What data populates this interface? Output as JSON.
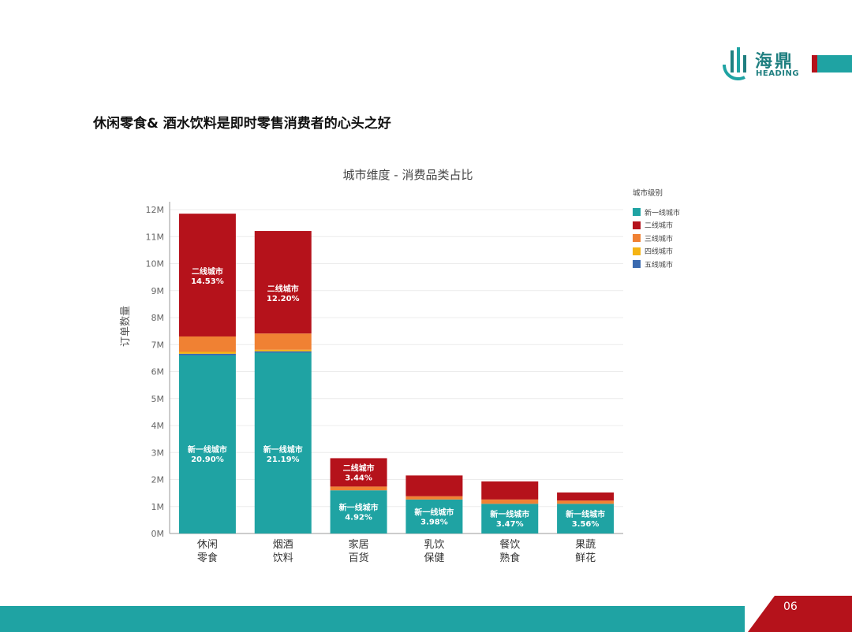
{
  "header": {
    "logo_cn": "海鼎",
    "logo_en": "HEADING",
    "headline": "休闲零食& 酒水饮料是即时零售消费者的心头之好"
  },
  "footer": {
    "page_number": "06"
  },
  "colors": {
    "teal": "#1fa3a3",
    "red": "#b5121b",
    "orange": "#f08133",
    "yellow": "#f5b414",
    "blue": "#3a6ab0"
  },
  "chart_data": {
    "type": "bar",
    "stacked": true,
    "title": "城市维度 - 消费品类占比",
    "ylabel": "订单数量",
    "xlabel": "",
    "ylim": [
      0,
      12
    ],
    "y_unit_suffix": "M",
    "yticks": [
      "0M",
      "1M",
      "2M",
      "3M",
      "4M",
      "5M",
      "6M",
      "7M",
      "8M",
      "9M",
      "10M",
      "11M",
      "12M"
    ],
    "categories": [
      [
        "休闲",
        "零食"
      ],
      [
        "烟酒",
        "饮料"
      ],
      [
        "家居",
        "百货"
      ],
      [
        "乳饮",
        "保健"
      ],
      [
        "餐饮",
        "熟食"
      ],
      [
        "果蔬",
        "鲜花"
      ]
    ],
    "legend_title": "城市级别",
    "legend_position": "top-right",
    "grid": true,
    "series": [
      {
        "name": "新一线城市",
        "color": "#1fa3a3",
        "values": [
          6.6,
          6.7,
          1.6,
          1.26,
          1.1,
          1.1
        ]
      },
      {
        "name": "五线城市",
        "color": "#3a6ab0",
        "values": [
          0.06,
          0.05,
          0.0,
          0.0,
          0.0,
          0.0
        ]
      },
      {
        "name": "四线城市",
        "color": "#f5b414",
        "values": [
          0.07,
          0.06,
          0.0,
          0.0,
          0.0,
          0.0
        ]
      },
      {
        "name": "三线城市",
        "color": "#f08133",
        "values": [
          0.57,
          0.6,
          0.14,
          0.12,
          0.16,
          0.12
        ]
      },
      {
        "name": "二线城市",
        "color": "#b5121b",
        "values": [
          4.55,
          3.8,
          1.05,
          0.77,
          0.67,
          0.3
        ]
      }
    ],
    "legend_order": [
      "新一线城市",
      "二线城市",
      "三线城市",
      "四线城市",
      "五线城市"
    ],
    "data_labels": [
      {
        "category": 0,
        "series": "新一线城市",
        "name": "新一线城市",
        "value": "20.90%"
      },
      {
        "category": 1,
        "series": "新一线城市",
        "name": "新一线城市",
        "value": "21.19%"
      },
      {
        "category": 2,
        "series": "新一线城市",
        "name": "新一线城市",
        "value": "4.92%"
      },
      {
        "category": 3,
        "series": "新一线城市",
        "name": "新一线城市",
        "value": "3.98%"
      },
      {
        "category": 4,
        "series": "新一线城市",
        "name": "新一线城市",
        "value": "3.47%"
      },
      {
        "category": 5,
        "series": "新一线城市",
        "name": "新一线城市",
        "value": "3.56%"
      },
      {
        "category": 0,
        "series": "二线城市",
        "name": "二线城市",
        "value": "14.53%"
      },
      {
        "category": 1,
        "series": "二线城市",
        "name": "二线城市",
        "value": "12.20%"
      },
      {
        "category": 2,
        "series": "二线城市",
        "name": "二线城市",
        "value": "3.44%"
      }
    ]
  }
}
